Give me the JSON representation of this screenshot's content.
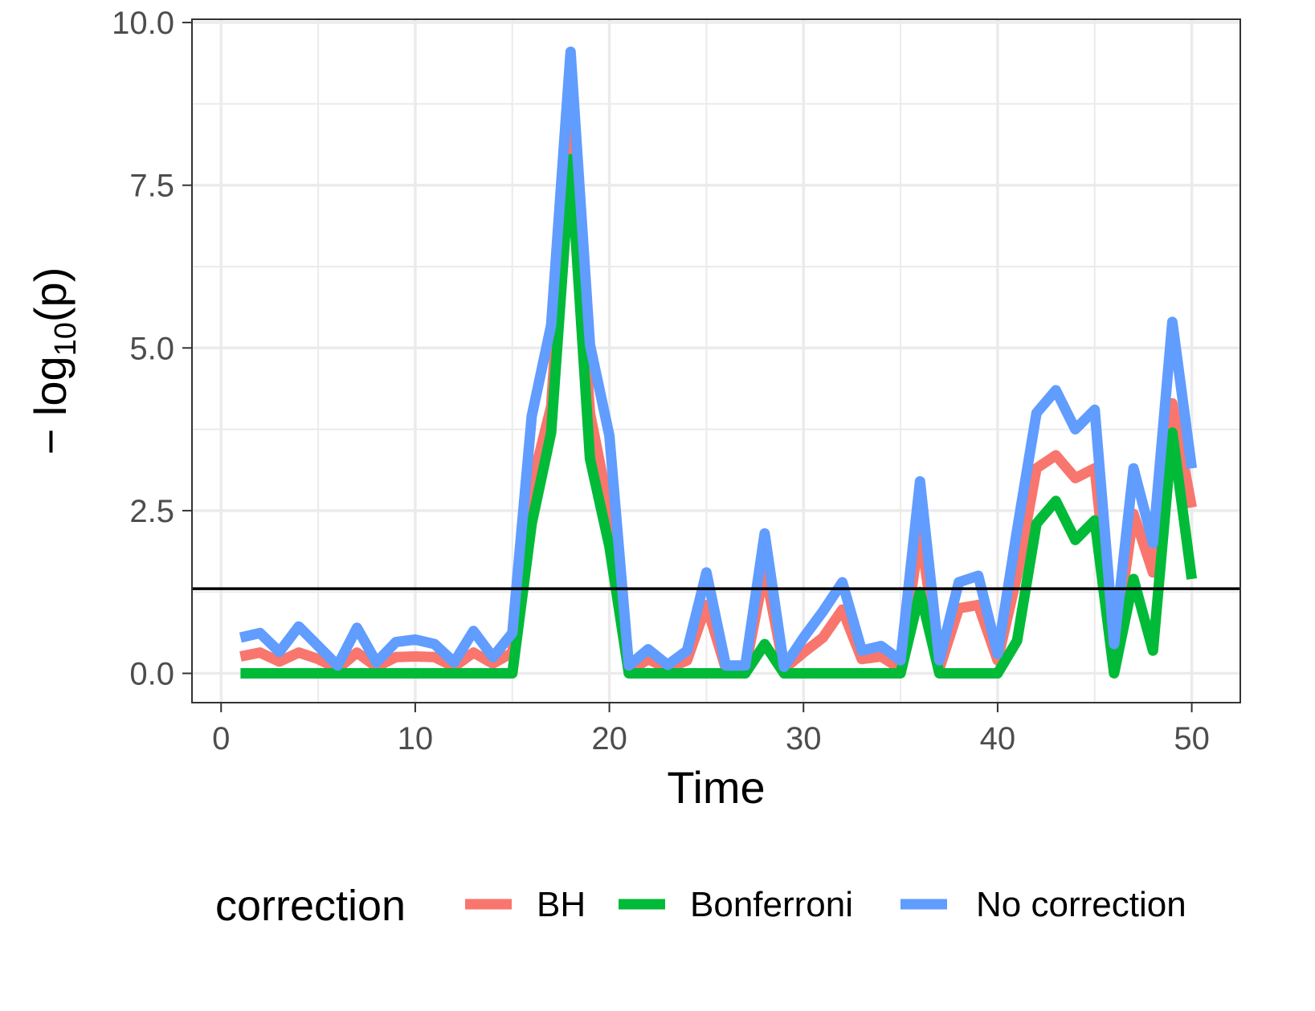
{
  "chart_data": {
    "type": "line",
    "xlabel": "Time",
    "ylabel": "− log10(p)",
    "ylabel_parts": {
      "prefix": "− log",
      "subscript": "10",
      "suffix": "(p)"
    },
    "xlim": [
      -1.5,
      52.5
    ],
    "ylim": [
      -0.45,
      10.05
    ],
    "x_ticks": [
      0,
      10,
      20,
      30,
      40,
      50
    ],
    "x_tick_labels": [
      "0",
      "10",
      "20",
      "30",
      "40",
      "50"
    ],
    "y_ticks": [
      0,
      2.5,
      5,
      7.5,
      10
    ],
    "y_tick_labels": [
      "0.0",
      "2.5",
      "5.0",
      "7.5",
      "10.0"
    ],
    "grid": true,
    "reference_line": {
      "y": 1.301,
      "color": "#000000"
    },
    "x": [
      1,
      2,
      3,
      4,
      5,
      6,
      7,
      8,
      9,
      10,
      11,
      12,
      13,
      14,
      15,
      16,
      17,
      18,
      19,
      20,
      21,
      22,
      23,
      24,
      25,
      26,
      27,
      28,
      29,
      30,
      31,
      32,
      33,
      34,
      35,
      36,
      37,
      38,
      39,
      40,
      41,
      42,
      43,
      44,
      45,
      46,
      47,
      48,
      49,
      50
    ],
    "series": [
      {
        "name": "BH",
        "color": "#F8766D",
        "values": [
          0.26,
          0.32,
          0.18,
          0.32,
          0.22,
          0.07,
          0.32,
          0.1,
          0.25,
          0.26,
          0.25,
          0.1,
          0.32,
          0.15,
          0.32,
          2.9,
          4.1,
          8.6,
          4.0,
          2.5,
          0.02,
          0.22,
          0.07,
          0.2,
          1.05,
          0.07,
          0.07,
          1.6,
          0.07,
          0.32,
          0.55,
          0.98,
          0.22,
          0.26,
          0.07,
          2.2,
          0.07,
          1.0,
          1.05,
          0.2,
          1.5,
          3.15,
          3.35,
          3.0,
          3.15,
          0.32,
          2.45,
          1.55,
          4.15,
          2.55
        ]
      },
      {
        "name": "Bonferroni",
        "color": "#00BA38",
        "values": [
          0,
          0,
          0,
          0,
          0,
          0,
          0,
          0,
          0,
          0,
          0,
          0,
          0,
          0,
          0,
          2.3,
          3.7,
          7.9,
          3.3,
          1.95,
          0,
          0,
          0,
          0,
          0,
          0,
          0,
          0.45,
          0,
          0,
          0,
          0,
          0,
          0,
          0,
          1.25,
          0,
          0,
          0,
          0,
          0.5,
          2.3,
          2.65,
          2.05,
          2.35,
          0,
          1.45,
          0.35,
          3.7,
          1.45
        ]
      },
      {
        "name": "No correction",
        "color": "#619CFF",
        "values": [
          0.55,
          0.62,
          0.33,
          0.72,
          0.42,
          0.12,
          0.7,
          0.17,
          0.48,
          0.52,
          0.45,
          0.17,
          0.65,
          0.25,
          0.62,
          3.95,
          5.35,
          9.55,
          5.05,
          3.65,
          0.12,
          0.37,
          0.13,
          0.35,
          1.55,
          0.12,
          0.12,
          2.15,
          0.1,
          0.55,
          0.95,
          1.4,
          0.35,
          0.42,
          0.2,
          2.95,
          0.2,
          1.4,
          1.5,
          0.3,
          2.2,
          4.0,
          4.35,
          3.75,
          4.05,
          0.45,
          3.15,
          2.0,
          5.4,
          3.15
        ]
      }
    ],
    "legend": {
      "title": "correction",
      "position": "bottom",
      "entries": [
        "BH",
        "Bonferroni",
        "No correction"
      ]
    }
  }
}
